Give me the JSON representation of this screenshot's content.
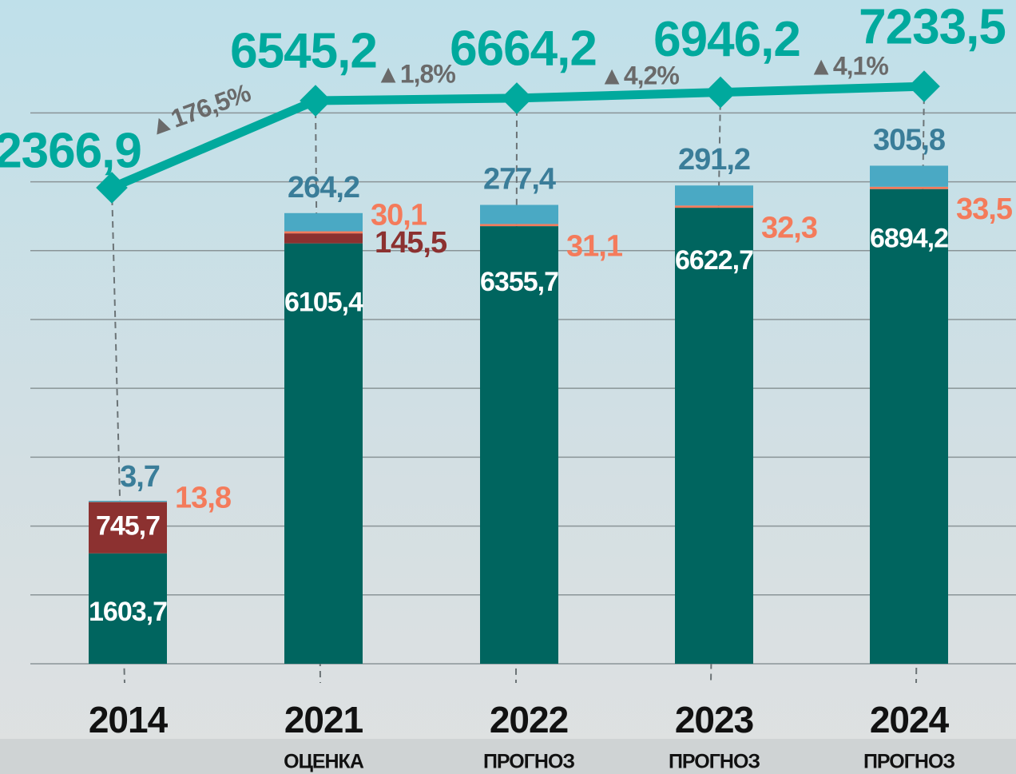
{
  "chart_data": {
    "type": "stacked_bar_line",
    "categories": [
      "2014",
      "2021",
      "2022",
      "2023",
      "2024"
    ],
    "category_notes": [
      null,
      "ОЦЕНКА",
      "ПРОГНОЗ",
      "ПРОГНОЗ",
      "ПРОГНОЗ"
    ],
    "series": [
      {
        "color": "#00655f",
        "label_color": "#ffffff",
        "values": [
          1603.7,
          6105.4,
          6355.7,
          6622.7,
          6894.2
        ],
        "value_labels": [
          "1603,7",
          "6105,4",
          "6355,7",
          "6622,7",
          "6894,2"
        ]
      },
      {
        "color": "#8c3130",
        "label_color": "#8c3130",
        "values": [
          745.7,
          145.5,
          null,
          null,
          null
        ],
        "value_labels": [
          "745,7",
          "145,5",
          null,
          null,
          null
        ]
      },
      {
        "color": "#f47b5b",
        "label_color": "#f47b5b",
        "values": [
          13.8,
          30.1,
          31.1,
          32.3,
          33.5
        ],
        "value_labels": [
          "13,8",
          "30,1",
          "31,1",
          "32,3",
          "33,5"
        ]
      },
      {
        "color": "#4aa9c4",
        "label_color": "#3a7d99",
        "values": [
          3.7,
          264.2,
          277.4,
          291.2,
          305.8
        ],
        "value_labels": [
          "3,7",
          "264,2",
          "277,4",
          "291,2",
          "305,8"
        ]
      }
    ],
    "line": {
      "color": "#00a99d",
      "axis": "y2",
      "values": [
        2366.9,
        6545.2,
        6664.2,
        6946.2,
        7233.5
      ],
      "value_labels": [
        "2366,9",
        "6545,2",
        "6664,2",
        "6946,2",
        "7233,5"
      ]
    },
    "annotations": [
      "▲176,5%",
      "▲1,8%",
      "▲4,2%",
      "▲4,1%"
    ],
    "ylim": [
      0,
      9640
    ],
    "yticks": [
      0,
      1000,
      2000,
      3000,
      4000,
      5000,
      6000,
      7000,
      8000
    ],
    "ytick_labels": false,
    "y2lim": [
      -20500,
      11380
    ],
    "grid": true
  }
}
